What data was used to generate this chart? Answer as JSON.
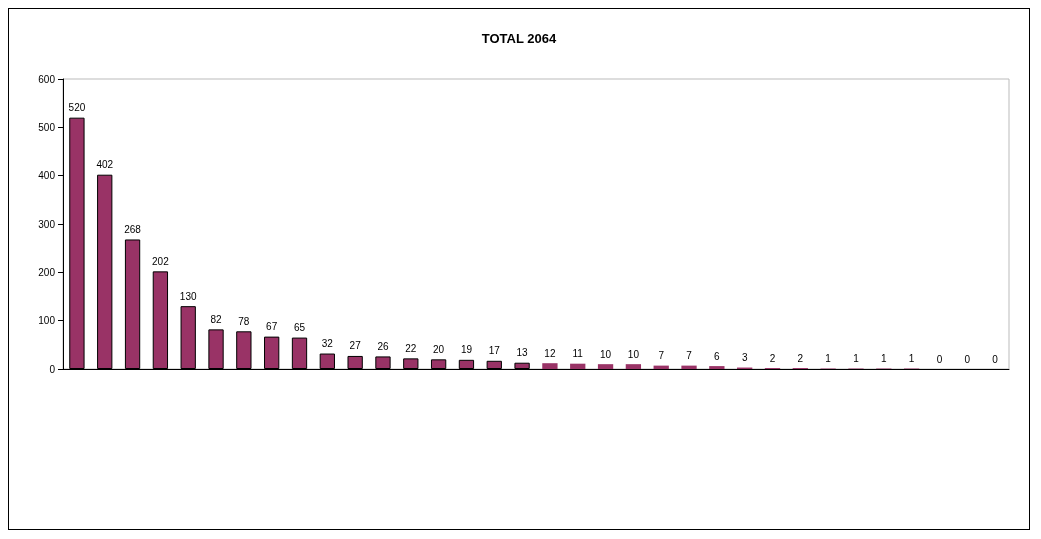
{
  "chart_data": {
    "type": "bar",
    "title": "TOTAL 2064",
    "categories": [
      null,
      null,
      null,
      null,
      null,
      null,
      null,
      null,
      null,
      null,
      null,
      null,
      null,
      null,
      null,
      null,
      null,
      null,
      null,
      null,
      null,
      null,
      null,
      null,
      null,
      null,
      null,
      null,
      null,
      null,
      null,
      null,
      null,
      null
    ],
    "values": [
      520,
      402,
      268,
      202,
      130,
      82,
      78,
      67,
      65,
      32,
      27,
      26,
      22,
      20,
      19,
      17,
      13,
      12,
      11,
      10,
      10,
      7,
      7,
      6,
      3,
      2,
      2,
      1,
      1,
      1,
      1,
      0,
      0,
      0
    ],
    "color": "#993366",
    "ylim": [
      0,
      600
    ],
    "yticks": [
      0,
      100,
      200,
      300,
      400,
      500,
      600
    ],
    "grid": false,
    "data_labels": true
  }
}
